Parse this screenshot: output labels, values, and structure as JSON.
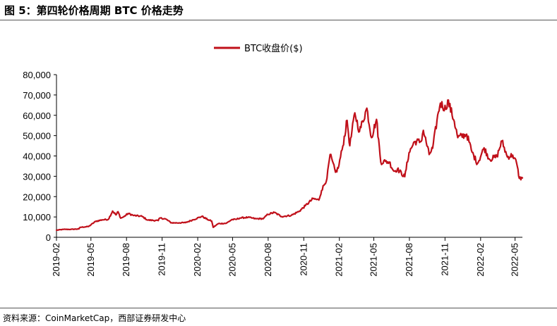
{
  "figure_title": "图 5：第四轮价格周期 BTC 价格走势",
  "source_note": "资料来源：CoinMarketCap，西部证券研发中心",
  "chart_data": {
    "type": "line",
    "title": "",
    "xlabel": "",
    "ylabel": "",
    "ylim": [
      0,
      80000
    ],
    "grid": false,
    "legend_position": "top-center",
    "y_ticks": [
      0,
      10000,
      20000,
      30000,
      40000,
      50000,
      60000,
      70000,
      80000
    ],
    "y_tick_labels": [
      "0",
      "10,000",
      "20,000",
      "30,000",
      "40,000",
      "50,000",
      "60,000",
      "70,000",
      "80,000"
    ],
    "x_tick_labels": [
      "2019-02",
      "2019-05",
      "2019-08",
      "2019-11",
      "2020-02",
      "2020-05",
      "2020-08",
      "2020-11",
      "2021-02",
      "2021-05",
      "2021-08",
      "2021-11",
      "2022-02",
      "2022-05"
    ],
    "x_range": [
      "2019-02-01",
      "2022-05-20"
    ],
    "series": [
      {
        "name": "BTC收盘价($)",
        "color": "#c0101a",
        "points": [
          [
            "2019-02-01",
            3500
          ],
          [
            "2019-02-20",
            3900
          ],
          [
            "2019-03-10",
            3900
          ],
          [
            "2019-03-31",
            4100
          ],
          [
            "2019-04-03",
            4900
          ],
          [
            "2019-04-25",
            5300
          ],
          [
            "2019-05-13",
            7800
          ],
          [
            "2019-05-30",
            8600
          ],
          [
            "2019-06-15",
            8800
          ],
          [
            "2019-06-26",
            12900
          ],
          [
            "2019-07-05",
            11000
          ],
          [
            "2019-07-10",
            12600
          ],
          [
            "2019-07-17",
            9400
          ],
          [
            "2019-07-25",
            10100
          ],
          [
            "2019-08-05",
            11700
          ],
          [
            "2019-08-20",
            10700
          ],
          [
            "2019-09-10",
            10300
          ],
          [
            "2019-09-24",
            8500
          ],
          [
            "2019-10-22",
            8200
          ],
          [
            "2019-10-26",
            9500
          ],
          [
            "2019-11-10",
            9000
          ],
          [
            "2019-11-25",
            7100
          ],
          [
            "2019-12-15",
            7100
          ],
          [
            "2019-12-31",
            7200
          ],
          [
            "2020-01-20",
            8600
          ],
          [
            "2020-02-12",
            10300
          ],
          [
            "2020-02-28",
            8600
          ],
          [
            "2020-03-08",
            8000
          ],
          [
            "2020-03-12",
            4900
          ],
          [
            "2020-03-25",
            6700
          ],
          [
            "2020-04-15",
            6900
          ],
          [
            "2020-04-29",
            8700
          ],
          [
            "2020-05-10",
            8800
          ],
          [
            "2020-05-20",
            9500
          ],
          [
            "2020-06-10",
            9800
          ],
          [
            "2020-06-30",
            9100
          ],
          [
            "2020-07-20",
            9200
          ],
          [
            "2020-07-31",
            11300
          ],
          [
            "2020-08-17",
            12200
          ],
          [
            "2020-09-05",
            10200
          ],
          [
            "2020-09-30",
            10800
          ],
          [
            "2020-10-21",
            12900
          ],
          [
            "2020-11-05",
            15500
          ],
          [
            "2020-11-25",
            19000
          ],
          [
            "2020-12-10",
            18300
          ],
          [
            "2020-12-17",
            23000
          ],
          [
            "2020-12-31",
            29000
          ],
          [
            "2021-01-08",
            40700
          ],
          [
            "2021-01-22",
            32000
          ],
          [
            "2021-01-29",
            34000
          ],
          [
            "2021-02-10",
            44900
          ],
          [
            "2021-02-21",
            57500
          ],
          [
            "2021-02-28",
            45000
          ],
          [
            "2021-03-13",
            61200
          ],
          [
            "2021-03-25",
            52000
          ],
          [
            "2021-04-13",
            63500
          ],
          [
            "2021-04-25",
            49000
          ],
          [
            "2021-05-08",
            58000
          ],
          [
            "2021-05-19",
            37000
          ],
          [
            "2021-05-31",
            37300
          ],
          [
            "2021-06-10",
            37000
          ],
          [
            "2021-06-22",
            32500
          ],
          [
            "2021-07-01",
            33500
          ],
          [
            "2021-07-20",
            29800
          ],
          [
            "2021-07-31",
            41600
          ],
          [
            "2021-08-14",
            47000
          ],
          [
            "2021-08-31",
            47100
          ],
          [
            "2021-09-06",
            52600
          ],
          [
            "2021-09-21",
            40700
          ],
          [
            "2021-09-30",
            43800
          ],
          [
            "2021-10-15",
            61600
          ],
          [
            "2021-10-20",
            66000
          ],
          [
            "2021-11-03",
            63000
          ],
          [
            "2021-11-08",
            67500
          ],
          [
            "2021-11-25",
            57000
          ],
          [
            "2021-12-04",
            49000
          ],
          [
            "2021-12-27",
            50700
          ],
          [
            "2022-01-10",
            41800
          ],
          [
            "2022-01-24",
            36300
          ],
          [
            "2022-02-10",
            44000
          ],
          [
            "2022-02-24",
            38300
          ],
          [
            "2022-03-15",
            39700
          ],
          [
            "2022-03-28",
            47400
          ],
          [
            "2022-04-11",
            39500
          ],
          [
            "2022-04-25",
            40400
          ],
          [
            "2022-05-05",
            36500
          ],
          [
            "2022-05-12",
            29000
          ],
          [
            "2022-05-20",
            29200
          ]
        ]
      }
    ]
  }
}
